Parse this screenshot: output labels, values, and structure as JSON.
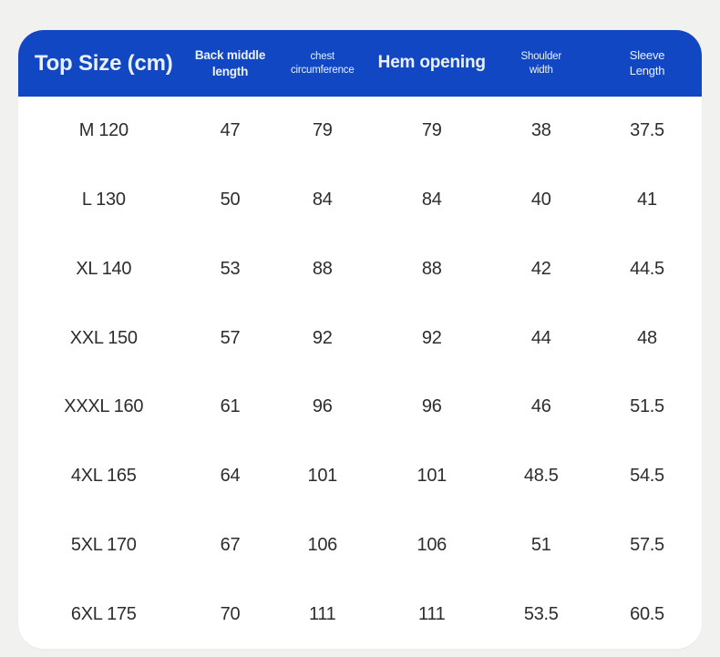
{
  "colors": {
    "page_background": "#f1f1ef",
    "header_background": "#1247c4",
    "header_text": "#e9f1ff",
    "card_background": "#ffffff",
    "cell_text": "#2d2d2d"
  },
  "header": {
    "col1": "Top Size (cm)",
    "col2": "Back middle length",
    "col3_line1": "chest",
    "col3_line2": "circumference",
    "col4": "Hem opening",
    "col5_line1": "Shoulder",
    "col5_line2": "width",
    "col6_line1": "Sleeve",
    "col6_line2": "Length"
  },
  "chart_data": {
    "type": "table",
    "title": "Top Size (cm)",
    "columns": [
      "Top Size (cm)",
      "Back middle length",
      "chest circumference",
      "Hem opening",
      "Shoulder width",
      "Sleeve Length"
    ],
    "rows": [
      [
        "M 120",
        "47",
        "79",
        "79",
        "38",
        "37.5"
      ],
      [
        "L 130",
        "50",
        "84",
        "84",
        "40",
        "41"
      ],
      [
        "XL 140",
        "53",
        "88",
        "88",
        "42",
        "44.5"
      ],
      [
        "XXL 150",
        "57",
        "92",
        "92",
        "44",
        "48"
      ],
      [
        "XXXL 160",
        "61",
        "96",
        "96",
        "46",
        "51.5"
      ],
      [
        "4XL 165",
        "64",
        "101",
        "101",
        "48.5",
        "54.5"
      ],
      [
        "5XL 170",
        "67",
        "106",
        "106",
        "51",
        "57.5"
      ],
      [
        "6XL 175",
        "70",
        "111",
        "111",
        "53.5",
        "60.5"
      ]
    ]
  }
}
